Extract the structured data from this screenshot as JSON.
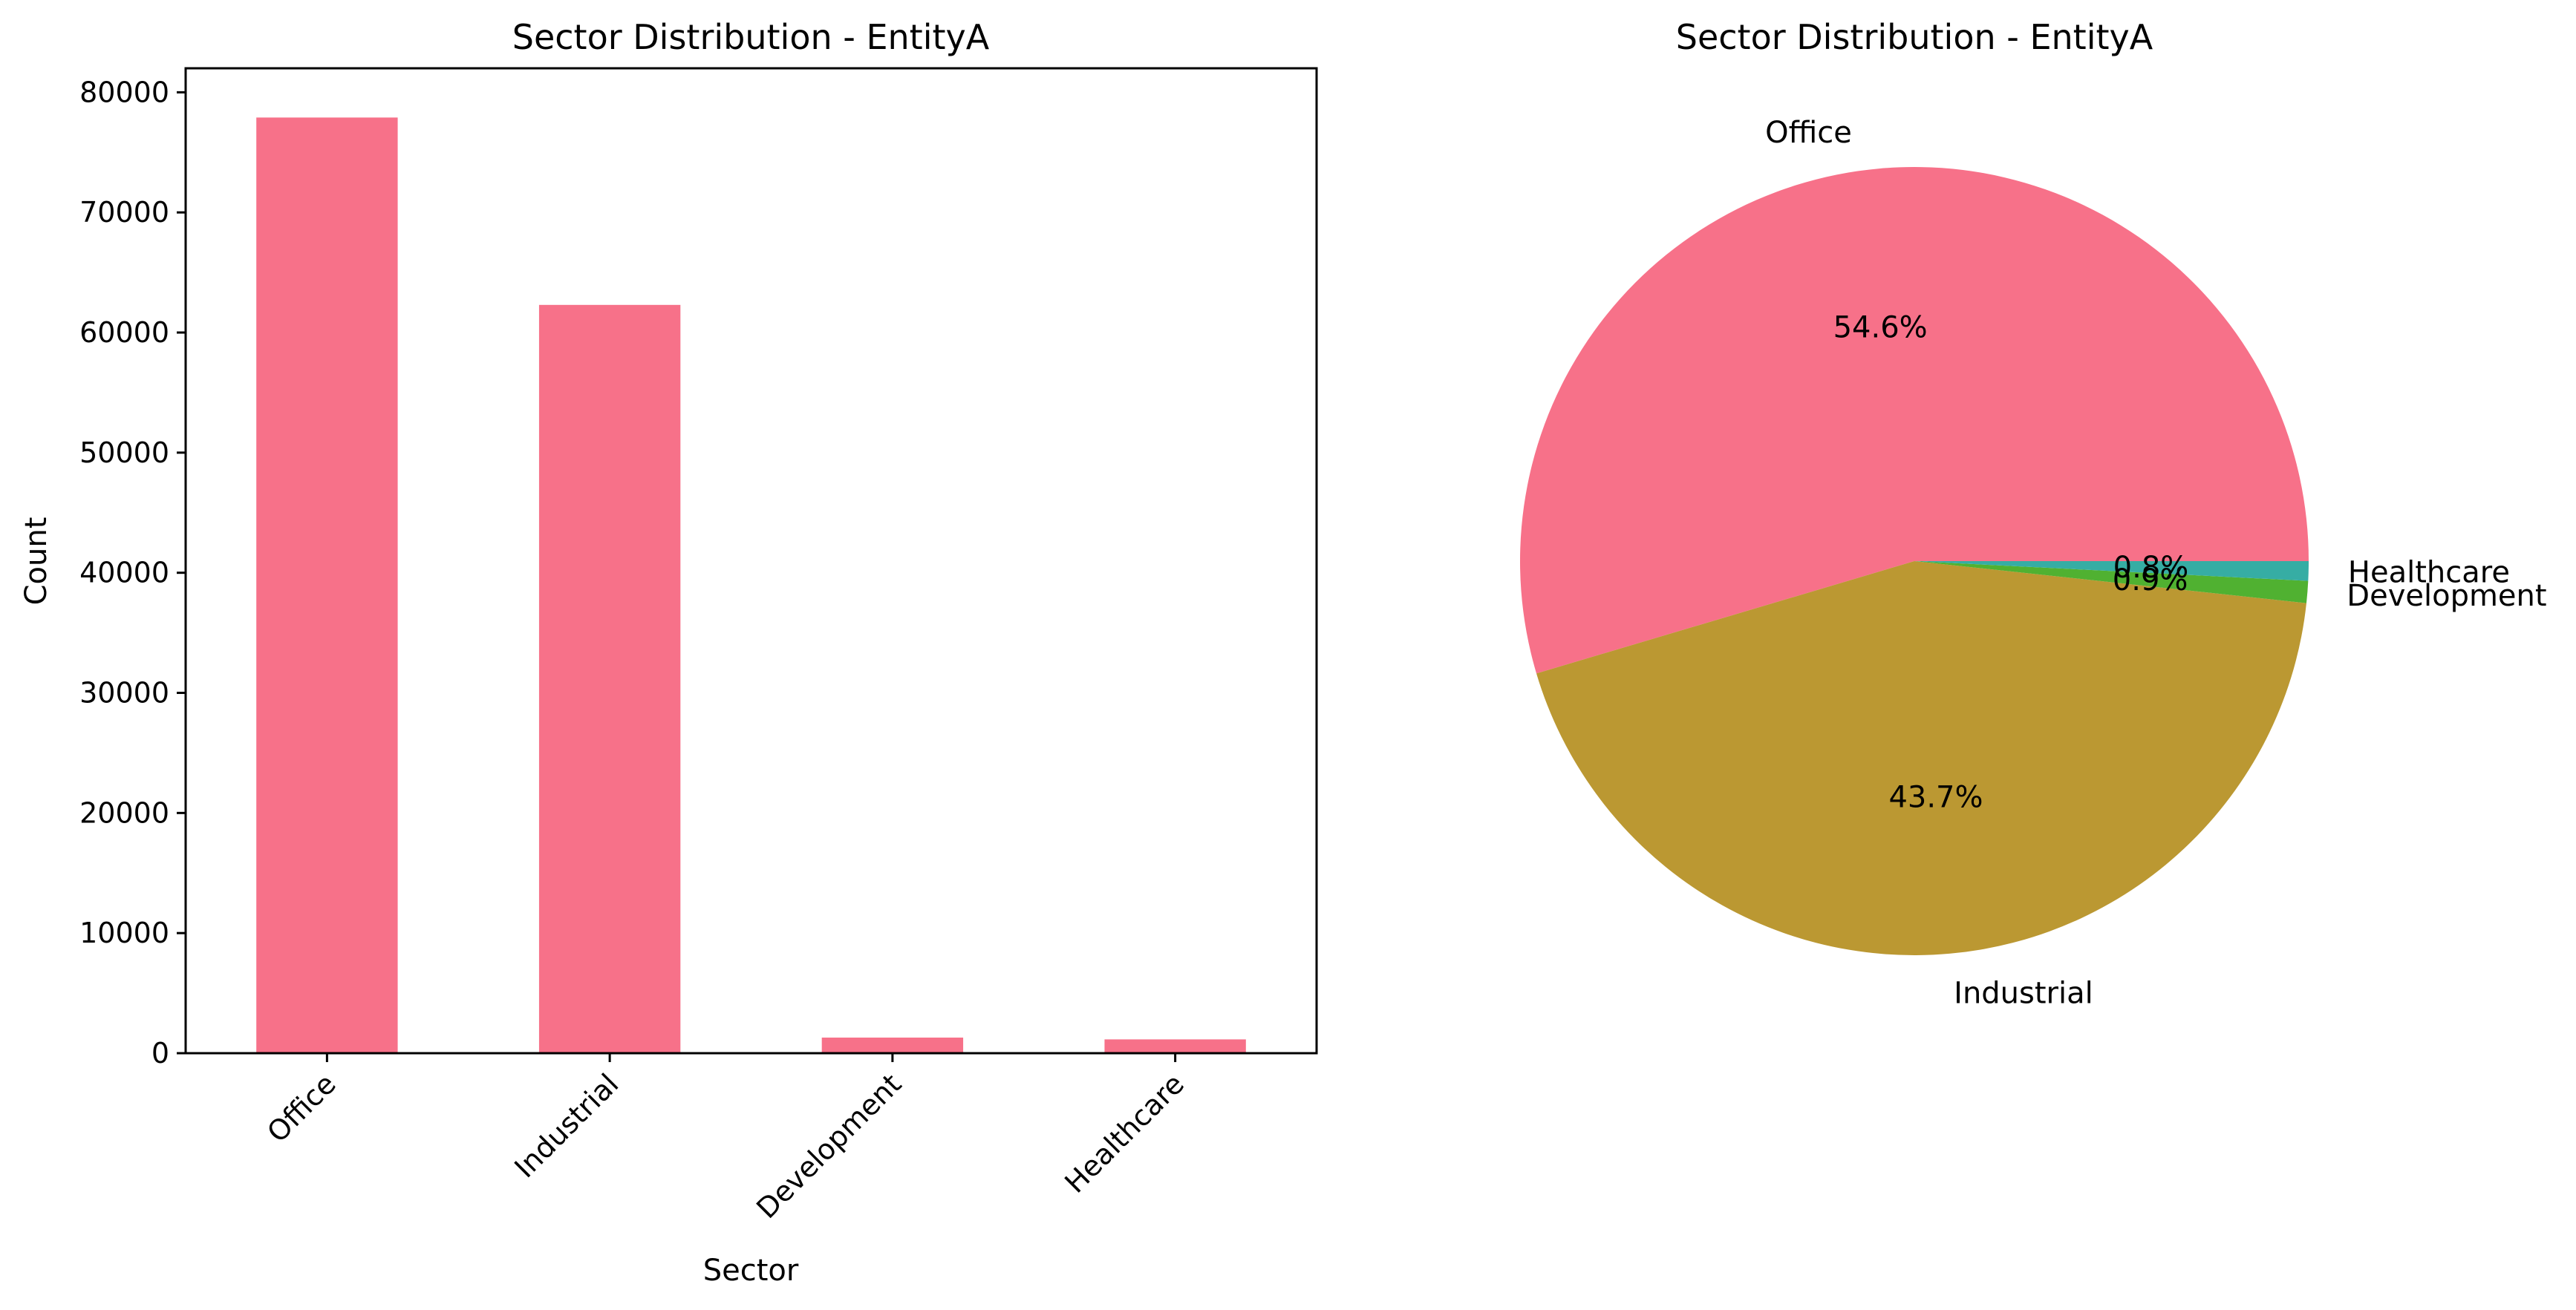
{
  "chart_data": [
    {
      "type": "bar",
      "title": "Sector Distribution - EntityA",
      "xlabel": "Sector",
      "ylabel": "Count",
      "categories": [
        "Office",
        "Industrial",
        "Development",
        "Healthcare"
      ],
      "values": [
        77900,
        62300,
        1300,
        1150
      ],
      "ylim": [
        0,
        82000
      ],
      "yticks": [
        0,
        10000,
        20000,
        30000,
        40000,
        50000,
        60000,
        70000,
        80000
      ],
      "ytick_labels": [
        "0",
        "10000",
        "20000",
        "30000",
        "40000",
        "50000",
        "60000",
        "70000",
        "80000"
      ],
      "color": "#f77189",
      "grid": false
    },
    {
      "type": "pie",
      "title": "Sector Distribution - EntityA",
      "labels": [
        "Office",
        "Industrial",
        "Development",
        "Healthcare"
      ],
      "values": [
        54.6,
        43.7,
        0.9,
        0.8
      ],
      "pct_labels": [
        "54.6%",
        "43.7%",
        "0.9%",
        "0.8%"
      ],
      "colors": [
        "#f77189",
        "#bb9832",
        "#50b131",
        "#36ada4"
      ],
      "start_angle_deg": 0,
      "direction": "counterclockwise"
    }
  ]
}
